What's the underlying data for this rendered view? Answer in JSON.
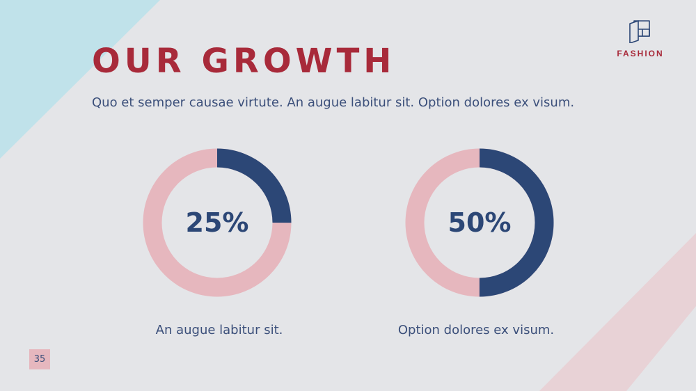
{
  "slide": {
    "title": "OUR GROWTH",
    "subtitle": "Quo et semper causae virtute. An augue labitur sit. Option dolores ex visum.",
    "page_number": "35"
  },
  "logo": {
    "icon": "book-icon",
    "text": "FASHION"
  },
  "colors": {
    "background": "#e4e5e8",
    "title": "#a82a3a",
    "accent_dark": "#2c4776",
    "accent_pink": "#e6b7be",
    "deco_blue": "#c0e2ea",
    "deco_pink": "#e8d2d6"
  },
  "donuts": [
    {
      "value": 25,
      "label": "25%",
      "caption": "An augue labitur sit."
    },
    {
      "value": 50,
      "label": "50%",
      "caption": "Option dolores ex visum."
    }
  ]
}
